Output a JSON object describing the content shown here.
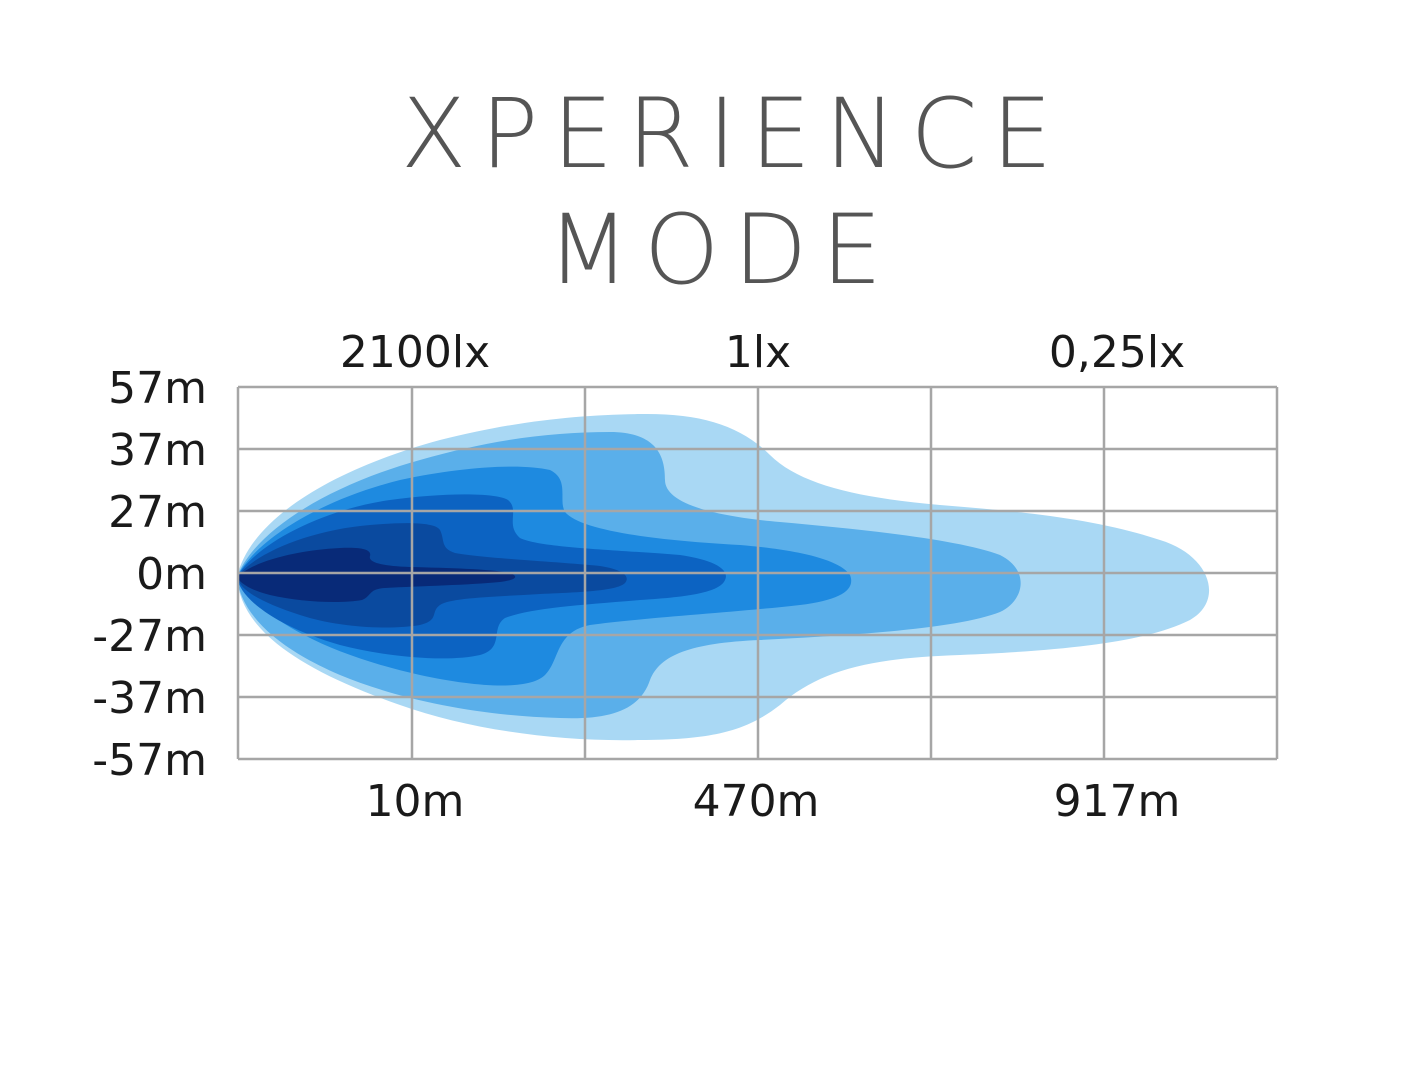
{
  "title_lines": [
    "XPERIENCE",
    "MODE"
  ],
  "chart_data": {
    "type": "contour",
    "title": "XPERIENCE MODE",
    "lux_labels": [
      "2100lx",
      "1lx",
      "0,25lx"
    ],
    "y_tick_labels": [
      "57m",
      "37m",
      "27m",
      "0m",
      "-27m",
      "-37m",
      "-57m"
    ],
    "x_tick_labels": [
      "10m",
      "470m",
      "917m"
    ],
    "grid": true,
    "contour_colors": [
      "#a9d8f4",
      "#5aafea",
      "#1e8ae0",
      "#0c63c2",
      "#0a4a9f",
      "#082a78"
    ],
    "grid_color": "#a6a6a6"
  }
}
